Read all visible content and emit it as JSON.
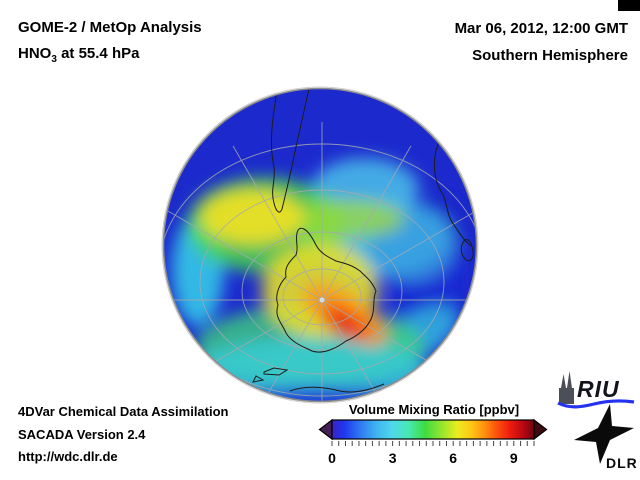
{
  "header": {
    "title": "GOME-2 / MetOp Analysis",
    "species_main": "HNO",
    "species_sub": "3",
    "species_rest": " at 55.4 hPa",
    "datetime": "Mar 06, 2012, 12:00 GMT",
    "region": "Southern Hemisphere"
  },
  "footer": {
    "line1": "4DVar Chemical Data Assimilation",
    "line2": "SACADA Version 2.4",
    "line3": "http://wdc.dlr.de"
  },
  "colorbar": {
    "title": "Volume Mixing Ratio [ppbv]",
    "tick_labels": [
      "0",
      "3",
      "6",
      "9"
    ],
    "range_min": 0,
    "range_max": 10,
    "minor_divisions": 30,
    "left_arrow_color": "#452055",
    "right_arrow_color": "#3c0a10",
    "gradient_stops": [
      [
        "0%",
        "#3a23c4"
      ],
      [
        "6%",
        "#2036ee"
      ],
      [
        "14%",
        "#2f7af2"
      ],
      [
        "22%",
        "#3fb4f0"
      ],
      [
        "30%",
        "#4fd8ea"
      ],
      [
        "38%",
        "#48e8b0"
      ],
      [
        "46%",
        "#3edc42"
      ],
      [
        "55%",
        "#9ce62c"
      ],
      [
        "62%",
        "#eaec20"
      ],
      [
        "69%",
        "#ffc614"
      ],
      [
        "75%",
        "#ff9410"
      ],
      [
        "82%",
        "#fb4d0c"
      ],
      [
        "88%",
        "#ee1d0e"
      ],
      [
        "94%",
        "#c00812"
      ],
      [
        "100%",
        "#700410"
      ]
    ]
  },
  "logos": {
    "riu_label": "RIU",
    "dlr_label": "DLR"
  },
  "map_colors": {
    "ocean_low": "#1c2acd",
    "midlat_cyan": "#3fd0e8",
    "enhanced_yellow": "#ecdf25",
    "vortex_orange": "#ff9417",
    "vortex_red": "#e82c12",
    "graticule": "#a5a9b0",
    "coastline": "#1c1c1c",
    "rim": "#8c8c8c"
  },
  "chart_data": {
    "type": "heatmap",
    "projection": "orthographic view centered on the Southern Hemisphere (south polar)",
    "title": "GOME-2 / MetOp Analysis — HNO3 at 55.4 hPa",
    "datetime": "Mar 06, 2012, 12:00 GMT",
    "region": "Southern Hemisphere",
    "variable": "HNO3 volume mixing ratio",
    "units": "ppbv",
    "colorbar": {
      "label": "Volume Mixing Ratio [ppbv]",
      "ticks": [
        0,
        3,
        6,
        9
      ],
      "range": [
        0,
        10
      ],
      "colormap": "jet-like: dark blue -> blue -> cyan -> green -> yellow -> orange -> red -> dark red, with under/over arrow caps"
    },
    "features": [
      {
        "area": "subtropical latitudes near globe rim (top, over South America / Atlantic)",
        "value_ppbv": 1.0
      },
      {
        "area": "upper-right midlatitude patch (light blue)",
        "value_ppbv": 2.5
      },
      {
        "area": "midlatitude cyan band sweeping across center-right",
        "value_ppbv": 3.0
      },
      {
        "area": "yellow maximum band west/south of South America (SE Pacific)",
        "value_ppbv": 6.0
      },
      {
        "area": "green collar around Antarctica",
        "value_ppbv": 4.5
      },
      {
        "area": "Antarctic interior (yellow-orange)",
        "value_ppbv": 6.5
      },
      {
        "area": "polar vortex crescent over Antarctica (orange-red core)",
        "value_ppbv": 8.5
      },
      {
        "area": "dark blue pocket east of Antarctica (right-center)",
        "value_ppbv": 1.5
      },
      {
        "area": "bottom rim ocean band (blue)",
        "value_ppbv": 1.5
      }
    ],
    "overlays": [
      "continental coastlines (South America, Antarctica, southern Africa, Madagascar, New Zealand, Australia)",
      "latitude/longitude graticule converging at the South Pole"
    ]
  }
}
